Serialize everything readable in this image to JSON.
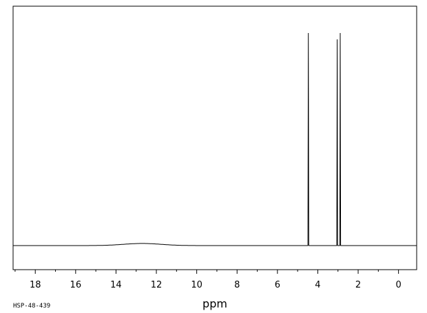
{
  "chart_data": {
    "type": "line",
    "title": "",
    "xlabel": "ppm",
    "ylabel": "",
    "x_reversed": true,
    "xlim": [
      19.1,
      -0.9
    ],
    "ylim": [
      -0.1,
      1.1
    ],
    "ticks": [
      18,
      16,
      14,
      12,
      10,
      8,
      6,
      4,
      2,
      0
    ],
    "grid": false,
    "legend": "none",
    "peaks": [
      {
        "ppm": 4.47,
        "height": 1.0
      },
      {
        "ppm": 3.04,
        "height": 0.97
      },
      {
        "ppm": 2.89,
        "height": 1.0
      }
    ],
    "broad_hump": {
      "center_ppm": 12.7,
      "height": 0.01
    },
    "baseline": 0.0
  },
  "footer": {
    "sample_code": "HSP-48-439"
  },
  "colors": {
    "line": "#000000",
    "background": "#ffffff"
  }
}
